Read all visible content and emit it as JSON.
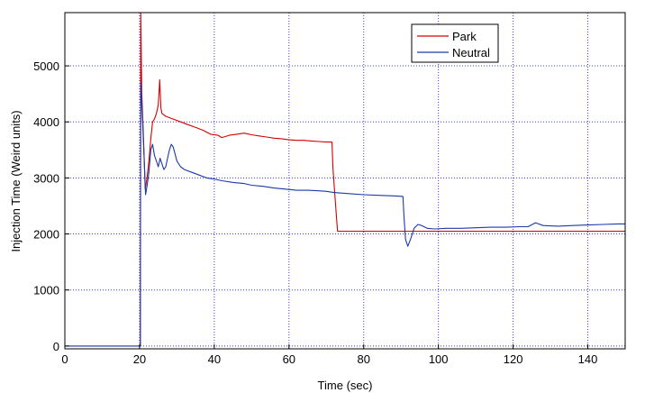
{
  "chart_data": {
    "type": "line",
    "xlabel": "Time (sec)",
    "ylabel": "Injection Time (Weird units)",
    "xlim": [
      0,
      150
    ],
    "ylim": [
      -50,
      5950
    ],
    "x_ticks": [
      0,
      20,
      40,
      60,
      80,
      100,
      120,
      140
    ],
    "y_ticks": [
      0,
      1000,
      2000,
      3000,
      4000,
      5000
    ],
    "grid": true,
    "legend_position": "top-right",
    "series": [
      {
        "name": "Park",
        "color": "#d40000",
        "points": [
          [
            20.2,
            0
          ],
          [
            20.3,
            5950
          ],
          [
            20.6,
            4500
          ],
          [
            21.0,
            3800
          ],
          [
            21.5,
            2800
          ],
          [
            22.0,
            3000
          ],
          [
            22.5,
            3300
          ],
          [
            23.0,
            3700
          ],
          [
            23.5,
            4000
          ],
          [
            24.0,
            4050
          ],
          [
            24.5,
            4150
          ],
          [
            25.0,
            4300
          ],
          [
            25.4,
            4750
          ],
          [
            25.7,
            4250
          ],
          [
            26.0,
            4150
          ],
          [
            27.0,
            4100
          ],
          [
            29.0,
            4050
          ],
          [
            31.0,
            4000
          ],
          [
            33.0,
            3950
          ],
          [
            35.0,
            3900
          ],
          [
            37.0,
            3850
          ],
          [
            39.0,
            3780
          ],
          [
            41.0,
            3760
          ],
          [
            42.0,
            3720
          ],
          [
            44.0,
            3760
          ],
          [
            46.0,
            3780
          ],
          [
            48.0,
            3800
          ],
          [
            50.0,
            3770
          ],
          [
            52.0,
            3750
          ],
          [
            54.0,
            3730
          ],
          [
            56.0,
            3710
          ],
          [
            58.0,
            3700
          ],
          [
            60.0,
            3680
          ],
          [
            62.0,
            3670
          ],
          [
            64.0,
            3670
          ],
          [
            66.0,
            3660
          ],
          [
            68.0,
            3650
          ],
          [
            70.0,
            3640
          ],
          [
            71.5,
            3640
          ],
          [
            71.8,
            3150
          ],
          [
            72.5,
            2500
          ],
          [
            73.0,
            2050
          ],
          [
            80.0,
            2050
          ],
          [
            100.0,
            2050
          ],
          [
            120.0,
            2050
          ],
          [
            140.0,
            2050
          ],
          [
            150.0,
            2050
          ]
        ]
      },
      {
        "name": "Neutral",
        "color": "#1a3aa6",
        "points": [
          [
            0,
            0
          ],
          [
            10.0,
            0
          ],
          [
            20.0,
            0
          ],
          [
            20.2,
            0
          ],
          [
            20.3,
            4700
          ],
          [
            20.8,
            4000
          ],
          [
            21.2,
            3400
          ],
          [
            21.6,
            2700
          ],
          [
            22.0,
            2850
          ],
          [
            22.5,
            3100
          ],
          [
            23.0,
            3500
          ],
          [
            23.5,
            3600
          ],
          [
            24.0,
            3400
          ],
          [
            24.5,
            3300
          ],
          [
            25.0,
            3200
          ],
          [
            25.5,
            3350
          ],
          [
            26.0,
            3250
          ],
          [
            26.5,
            3150
          ],
          [
            27.0,
            3200
          ],
          [
            27.5,
            3350
          ],
          [
            28.0,
            3500
          ],
          [
            28.5,
            3600
          ],
          [
            29.0,
            3550
          ],
          [
            30.0,
            3300
          ],
          [
            31.0,
            3200
          ],
          [
            32.0,
            3150
          ],
          [
            34.0,
            3100
          ],
          [
            36.0,
            3050
          ],
          [
            38.0,
            3000
          ],
          [
            40.0,
            2980
          ],
          [
            42.0,
            2950
          ],
          [
            45.0,
            2920
          ],
          [
            48.0,
            2900
          ],
          [
            50.0,
            2870
          ],
          [
            53.0,
            2850
          ],
          [
            56.0,
            2820
          ],
          [
            59.0,
            2800
          ],
          [
            62.0,
            2780
          ],
          [
            65.0,
            2780
          ],
          [
            68.0,
            2770
          ],
          [
            70.0,
            2760
          ],
          [
            72.0,
            2740
          ],
          [
            76.0,
            2720
          ],
          [
            80.0,
            2700
          ],
          [
            84.0,
            2690
          ],
          [
            88.0,
            2680
          ],
          [
            90.5,
            2670
          ],
          [
            90.8,
            2300
          ],
          [
            91.2,
            1900
          ],
          [
            91.8,
            1780
          ],
          [
            92.5,
            1900
          ],
          [
            93.5,
            2100
          ],
          [
            94.5,
            2170
          ],
          [
            95.5,
            2150
          ],
          [
            97.0,
            2100
          ],
          [
            99.0,
            2090
          ],
          [
            102.0,
            2100
          ],
          [
            106.0,
            2100
          ],
          [
            110.0,
            2110
          ],
          [
            114.0,
            2120
          ],
          [
            118.0,
            2120
          ],
          [
            122.0,
            2130
          ],
          [
            124.0,
            2130
          ],
          [
            126.0,
            2200
          ],
          [
            128.0,
            2150
          ],
          [
            132.0,
            2140
          ],
          [
            136.0,
            2150
          ],
          [
            140.0,
            2160
          ],
          [
            144.0,
            2170
          ],
          [
            148.0,
            2180
          ],
          [
            150.0,
            2180
          ]
        ]
      }
    ]
  }
}
